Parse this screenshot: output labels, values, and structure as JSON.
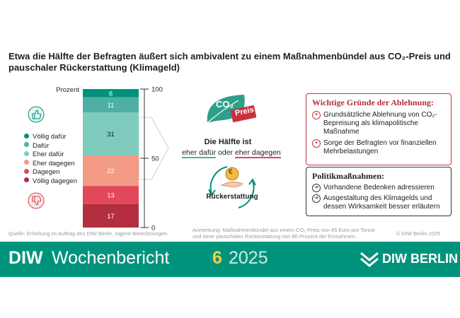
{
  "title": "Etwa die Hälfte der Befragten äußert sich ambivalent zu einem Maßnahmenbündel aus CO₂-Preis und pauschaler Rückerstattung (Klimageld)",
  "chart_data": {
    "type": "bar",
    "stacked": true,
    "ylabel": "Prozent",
    "ylim": [
      0,
      100
    ],
    "ticks": [
      "100",
      "50",
      "0"
    ],
    "series": [
      {
        "name": "Völlig dafür",
        "value": 6,
        "color": "#00937c"
      },
      {
        "name": "Dafür",
        "value": 11,
        "color": "#4db0a2"
      },
      {
        "name": "Eher dafür",
        "value": 31,
        "color": "#7fccbf"
      },
      {
        "name": "Eher dagegen",
        "value": 22,
        "color": "#f29a84"
      },
      {
        "name": "Dagegen",
        "value": 13,
        "color": "#e2475a"
      },
      {
        "name": "Völlig dagegen",
        "value": 17,
        "color": "#b32e3f"
      }
    ]
  },
  "middle": {
    "badge_co2": "CO₂",
    "badge_preis": "Preis",
    "headline": "Die Hälfte ist",
    "option_for": "eher dafür",
    "connector": "oder",
    "option_against": "eher dagegen",
    "refund_label": "Rückerstattung",
    "coin_symbol": "€"
  },
  "reasons_box": {
    "title": "Wichtige Gründe der Ablehnung:",
    "items": [
      "Grundsätzliche Ablehnung von CO₂-Bepreisung als klimapolitische Maßnahme",
      "Sorge der Befragten vor finanziellen Mehrbelastungen"
    ]
  },
  "policy_box": {
    "title": "Politikmaßnahmen:",
    "items": [
      "Vorhandene Bedenken adressieren",
      "Ausgestaltung des Klimagelds und dessen Wirksamkeit besser erläutern"
    ]
  },
  "source": "Quelle: Erhebung im Auftrag des DIW Berlin, eigene Berechnungen.",
  "note": "Anmerkung: Maßnahmenbündel aus einem CO₂-Preis von 45 Euro pro Tonne und einer pauschalen Rückerstattung von 80 Prozent der Einnahmen.",
  "copyright": "© DIW Berlin 2025",
  "footer": {
    "brand": "DIW",
    "publication": "Wochenbericht",
    "issue": "6",
    "year": "2025",
    "logo_text": "DIW BERLIN"
  },
  "colors": {
    "teal": "#00937c",
    "red": "#d9434f",
    "dark_red": "#b32e3f"
  }
}
